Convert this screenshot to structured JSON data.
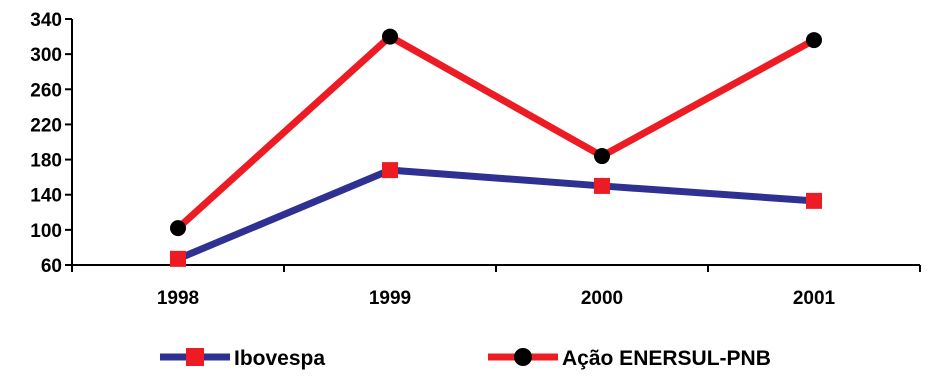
{
  "chart_data": {
    "type": "line",
    "categories": [
      "1998",
      "1999",
      "2000",
      "2001"
    ],
    "series": [
      {
        "name": "Ibovespa",
        "values": [
          67,
          168,
          150,
          133
        ],
        "color": "#2e3192",
        "marker": "square",
        "marker_color": "#ed1c24"
      },
      {
        "name": "Ação ENERSUL-PNB",
        "values": [
          102,
          320,
          184,
          316
        ],
        "color": "#ed1c24",
        "marker": "circle",
        "marker_color": "#000000"
      }
    ],
    "yticks": [
      60,
      100,
      140,
      180,
      220,
      260,
      300,
      340
    ],
    "ylim": [
      60,
      340
    ],
    "grid": false,
    "legend_position": "bottom"
  }
}
